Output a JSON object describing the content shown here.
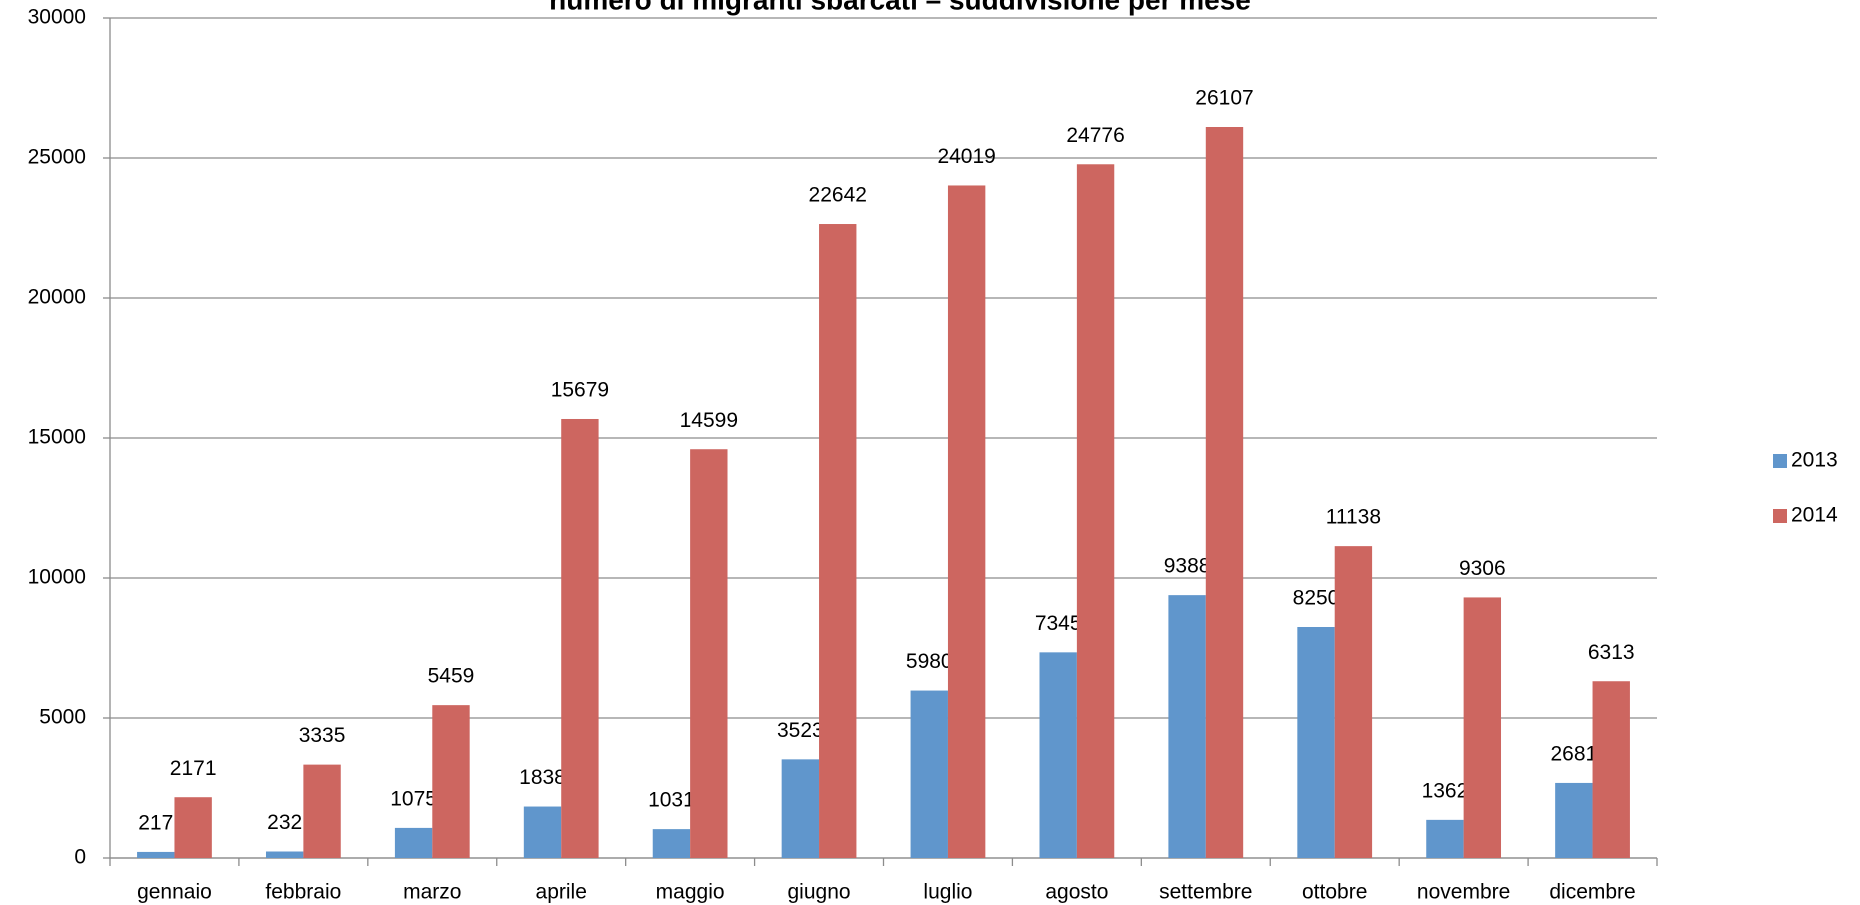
{
  "chart_data": {
    "type": "bar",
    "title": "numero di migranti sbarcati – suddivisione per mese",
    "categories": [
      "gennaio",
      "febbraio",
      "marzo",
      "aprile",
      "maggio",
      "giugno",
      "luglio",
      "agosto",
      "settembre",
      "ottobre",
      "novembre",
      "dicembre"
    ],
    "series": [
      {
        "name": "2013",
        "color": "#6096cc",
        "values": [
          217,
          232,
          1075,
          1838,
          1031,
          3523,
          5980,
          7345,
          9388,
          8250,
          1362,
          2681
        ]
      },
      {
        "name": "2014",
        "color": "#cd6660",
        "values": [
          2171,
          3335,
          5459,
          15679,
          14599,
          22642,
          24019,
          24776,
          26107,
          11138,
          9306,
          6313
        ]
      }
    ],
    "ylim": [
      0,
      30000
    ],
    "yticks": [
      0,
      5000,
      10000,
      15000,
      20000,
      25000,
      30000
    ],
    "grid": true,
    "legend": "right"
  }
}
